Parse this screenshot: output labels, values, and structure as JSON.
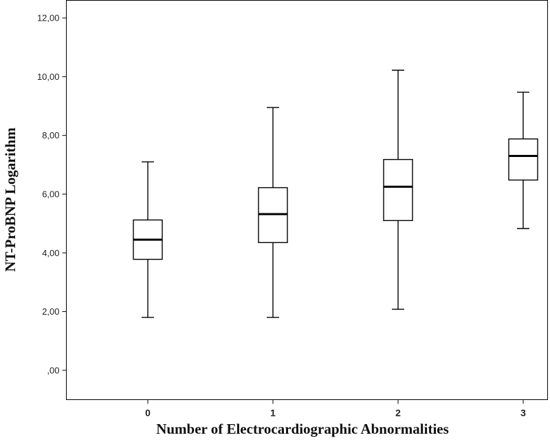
{
  "chart_data": {
    "type": "boxplot",
    "xlabel": "Number of Electrocardiographic Abnormalities",
    "ylabel": "NT-ProBNP Logarithm",
    "ylim": [
      -1.0,
      12.6
    ],
    "yticks": [
      0,
      2,
      4,
      6,
      8,
      10,
      12
    ],
    "ytick_labels": [
      ",00",
      "2,00",
      "4,00",
      "6,00",
      "8,00",
      "10,00",
      "12,00"
    ],
    "categories": [
      "0",
      "1",
      "2",
      "3"
    ],
    "boxes": [
      {
        "category": "0",
        "min": 1.8,
        "q1": 3.78,
        "median": 4.45,
        "q3": 5.12,
        "max": 7.1
      },
      {
        "category": "1",
        "min": 1.8,
        "q1": 4.35,
        "median": 5.32,
        "q3": 6.22,
        "max": 8.95
      },
      {
        "category": "2",
        "min": 2.08,
        "q1": 5.1,
        "median": 6.25,
        "q3": 7.18,
        "max": 10.22
      },
      {
        "category": "3",
        "min": 4.83,
        "q1": 6.48,
        "median": 7.3,
        "q3": 7.88,
        "max": 9.47
      }
    ],
    "grid": false,
    "legend": "none"
  }
}
